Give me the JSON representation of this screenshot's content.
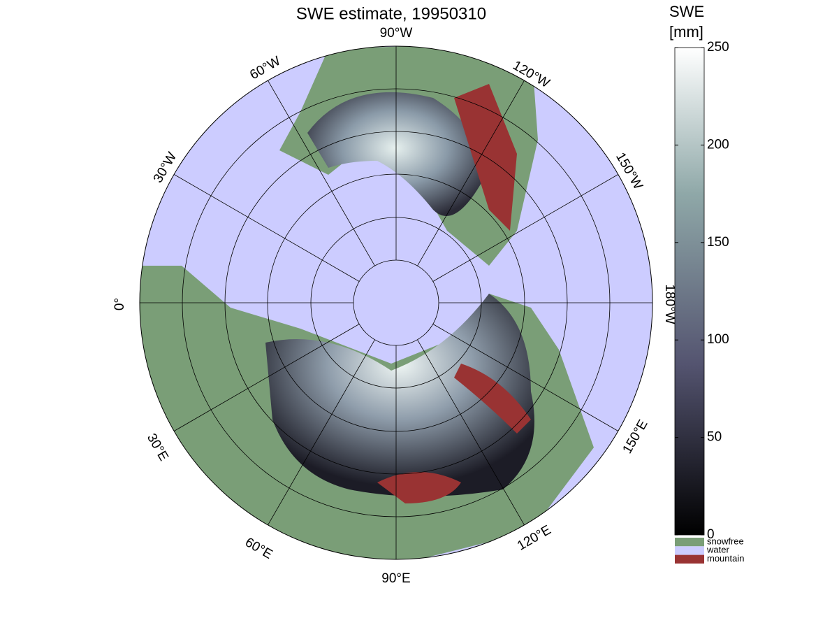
{
  "title": "SWE estimate, 19950310",
  "longitude_labels": [
    "90°W",
    "120°W",
    "150°W",
    "180°W",
    "150°E",
    "120°E",
    "90°E",
    "60°E",
    "30°E",
    "0°",
    "30°W",
    "60°W"
  ],
  "colorbar": {
    "title": [
      "SWE",
      "[mm]"
    ],
    "lim": [
      0,
      250
    ],
    "ticks": [
      0,
      50,
      100,
      150,
      200,
      250
    ]
  },
  "legend": [
    {
      "label": "snowfree",
      "color": "#7a9e77"
    },
    {
      "label": "water",
      "color": "#ccccff"
    },
    {
      "label": "mountain",
      "color": "#993333"
    }
  ]
}
